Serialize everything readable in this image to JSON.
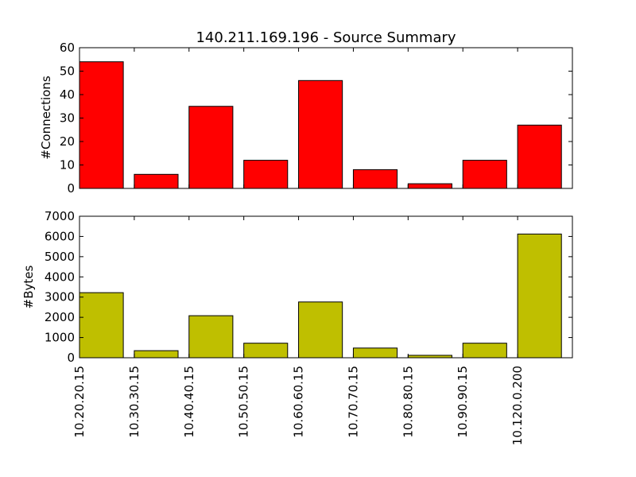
{
  "chart_data": [
    {
      "type": "bar",
      "title": "140.211.169.196 - Source Summary",
      "xlabel": "",
      "ylabel": "#Connections",
      "categories": [
        "10.20.20.15",
        "10.30.30.15",
        "10.40.40.15",
        "10.50.50.15",
        "10.60.60.15",
        "10.70.70.15",
        "10.80.80.15",
        "10.90.90.15",
        "10.120.0.200"
      ],
      "values": [
        54,
        6,
        35,
        12,
        46,
        8,
        2,
        12,
        27
      ],
      "ylim": [
        0,
        60
      ],
      "yticks": [
        0,
        10,
        20,
        30,
        40,
        50,
        60
      ],
      "color": "#ff0000",
      "grid": false,
      "show_x_tick_labels": false
    },
    {
      "type": "bar",
      "title": "",
      "xlabel": "",
      "ylabel": "#Bytes",
      "categories": [
        "10.20.20.15",
        "10.30.30.15",
        "10.40.40.15",
        "10.50.50.15",
        "10.60.60.15",
        "10.70.70.15",
        "10.80.80.15",
        "10.90.90.15",
        "10.120.0.200"
      ],
      "values": [
        3220,
        350,
        2080,
        720,
        2760,
        480,
        120,
        720,
        6120
      ],
      "ylim": [
        0,
        7000
      ],
      "yticks": [
        0,
        1000,
        2000,
        3000,
        4000,
        5000,
        6000,
        7000
      ],
      "color": "#bfbf00",
      "grid": false,
      "show_x_tick_labels": true
    }
  ]
}
